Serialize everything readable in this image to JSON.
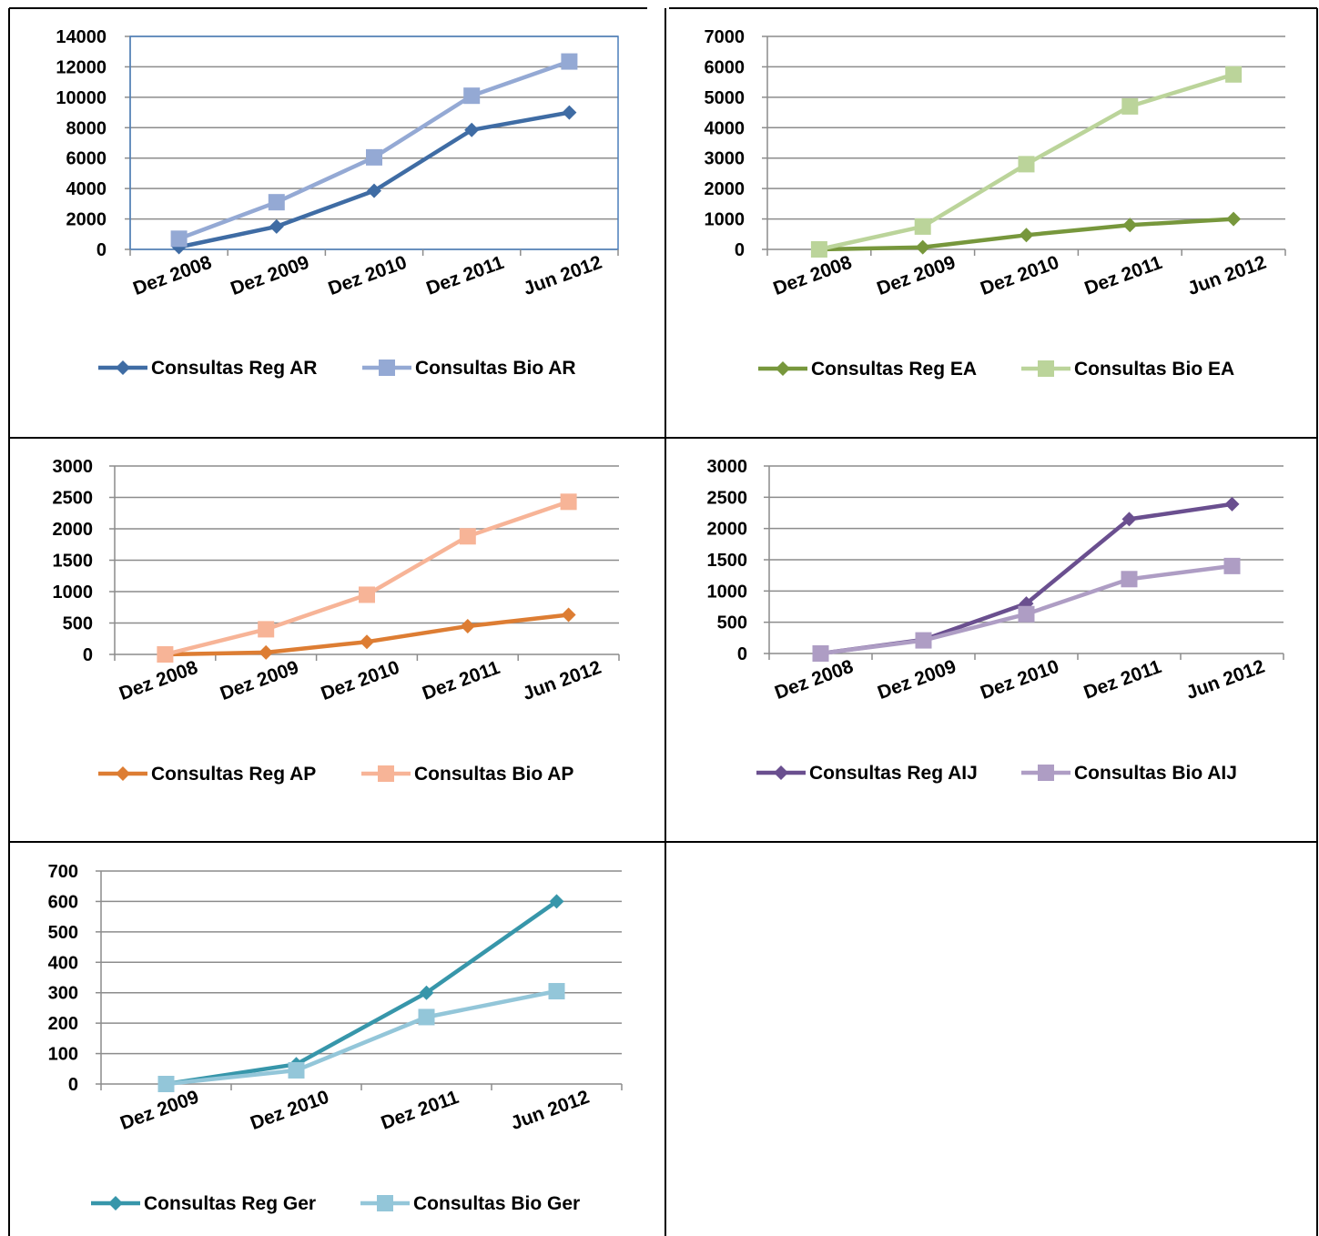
{
  "chart_data": [
    {
      "type": "line",
      "categories": [
        "Dez 2008",
        "Dez 2009",
        "Dez 2010",
        "Dez 2011",
        "Jun 2012"
      ],
      "ylim": [
        0,
        14000
      ],
      "yticks": [
        0,
        2000,
        4000,
        6000,
        8000,
        10000,
        12000,
        14000
      ],
      "grid": true,
      "legend": "bottom",
      "series": [
        {
          "name": "Consultas Reg AR",
          "values": [
            150,
            1500,
            3850,
            7850,
            9000
          ],
          "color": "#3F6CA4",
          "marker": "diamond"
        },
        {
          "name": "Consultas Bio AR",
          "values": [
            700,
            3100,
            6050,
            10100,
            12350
          ],
          "color": "#94A9D4",
          "marker": "square"
        }
      ]
    },
    {
      "type": "line",
      "categories": [
        "Dez 2008",
        "Dez 2009",
        "Dez 2010",
        "Dez 2011",
        "Jun 2012"
      ],
      "ylim": [
        0,
        7000
      ],
      "yticks": [
        0,
        1000,
        2000,
        3000,
        4000,
        5000,
        6000,
        7000
      ],
      "grid": true,
      "legend": "bottom",
      "series": [
        {
          "name": "Consultas Reg EA",
          "values": [
            0,
            70,
            470,
            800,
            1000
          ],
          "color": "#77973C",
          "marker": "diamond"
        },
        {
          "name": "Consultas Bio EA",
          "values": [
            0,
            750,
            2800,
            4700,
            5750
          ],
          "color": "#BBD49A",
          "marker": "square"
        }
      ]
    },
    {
      "type": "line",
      "categories": [
        "Dez 2008",
        "Dez 2009",
        "Dez 2010",
        "Dez 2011",
        "Jun 2012"
      ],
      "ylim": [
        0,
        3000
      ],
      "yticks": [
        0,
        500,
        1000,
        1500,
        2000,
        2500,
        3000
      ],
      "grid": true,
      "legend": "bottom",
      "series": [
        {
          "name": "Consultas Reg AP",
          "values": [
            0,
            30,
            200,
            450,
            630
          ],
          "color": "#DD7D33",
          "marker": "diamond"
        },
        {
          "name": "Consultas Bio AP",
          "values": [
            0,
            400,
            950,
            1880,
            2430
          ],
          "color": "#F7B497",
          "marker": "square"
        }
      ]
    },
    {
      "type": "line",
      "categories": [
        "Dez 2008",
        "Dez 2009",
        "Dez 2010",
        "Dez 2011",
        "Jun 2012"
      ],
      "ylim": [
        0,
        3000
      ],
      "yticks": [
        0,
        500,
        1000,
        1500,
        2000,
        2500,
        3000
      ],
      "grid": true,
      "legend": "bottom",
      "series": [
        {
          "name": "Consultas Reg AIJ",
          "values": [
            0,
            220,
            800,
            2150,
            2390
          ],
          "color": "#6A4F8F",
          "marker": "diamond"
        },
        {
          "name": "Consultas Bio AIJ",
          "values": [
            0,
            210,
            630,
            1190,
            1400
          ],
          "color": "#AE9DC4",
          "marker": "square"
        }
      ]
    },
    {
      "type": "line",
      "categories": [
        "Dez 2009",
        "Dez 2010",
        "Dez 2011",
        "Jun 2012"
      ],
      "ylim": [
        0,
        700
      ],
      "yticks": [
        0,
        100,
        200,
        300,
        400,
        500,
        600,
        700
      ],
      "grid": true,
      "legend": "bottom",
      "series": [
        {
          "name": "Consultas Reg Ger",
          "values": [
            0,
            65,
            300,
            600
          ],
          "color": "#3796AA",
          "marker": "diamond"
        },
        {
          "name": "Consultas Bio Ger",
          "values": [
            0,
            45,
            220,
            305
          ],
          "color": "#93C6D9",
          "marker": "square"
        }
      ]
    }
  ]
}
